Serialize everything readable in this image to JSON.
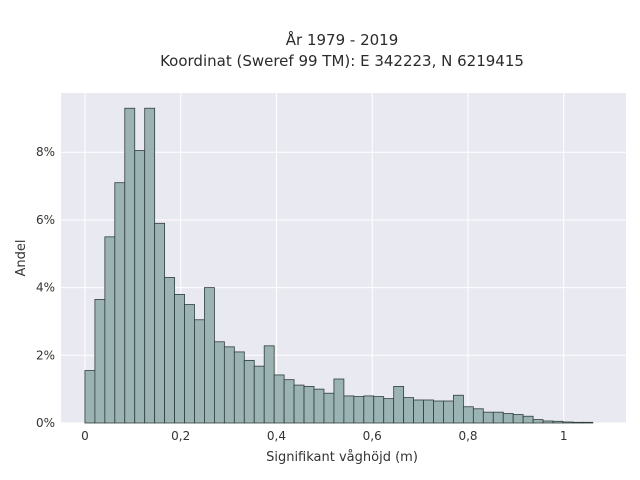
{
  "chart_data": {
    "type": "bar",
    "title_lines": [
      "År 1979 - 2019",
      "Koordinat (Sweref 99 TM): E 342223, N 6219415"
    ],
    "xlabel": "Signifikant våghöjd (m)",
    "ylabel": "Andel",
    "xlim": [
      -0.05,
      1.13
    ],
    "ylim": [
      0,
      9.75
    ],
    "x_ticks": [
      0,
      0.2,
      0.4,
      0.6,
      0.8,
      1
    ],
    "x_tick_labels": [
      "0",
      "0,2",
      "0,4",
      "0,6",
      "0,8",
      "1"
    ],
    "y_ticks": [
      0,
      2,
      4,
      6,
      8
    ],
    "y_tick_labels": [
      "0%",
      "2%",
      "4%",
      "6%",
      "8%"
    ],
    "grid": true,
    "bin_width": 0.0208,
    "bin_start": 0.0,
    "values": [
      1.55,
      3.65,
      5.5,
      7.1,
      9.3,
      8.05,
      9.3,
      5.9,
      4.3,
      3.8,
      3.5,
      3.05,
      4.0,
      2.4,
      2.25,
      2.1,
      1.85,
      1.68,
      2.28,
      1.42,
      1.28,
      1.12,
      1.08,
      1.0,
      0.88,
      1.3,
      0.8,
      0.78,
      0.8,
      0.78,
      0.72,
      1.08,
      0.75,
      0.68,
      0.68,
      0.65,
      0.65,
      0.82,
      0.48,
      0.42,
      0.32,
      0.32,
      0.28,
      0.25,
      0.2,
      0.1,
      0.06,
      0.05,
      0.03,
      0.02,
      0.02
    ],
    "colors": {
      "bar_fill": "#9bb3b3",
      "bar_stroke": "#2f3d3d",
      "plot_bg": "#e9e9f1",
      "grid": "#ffffff"
    }
  }
}
